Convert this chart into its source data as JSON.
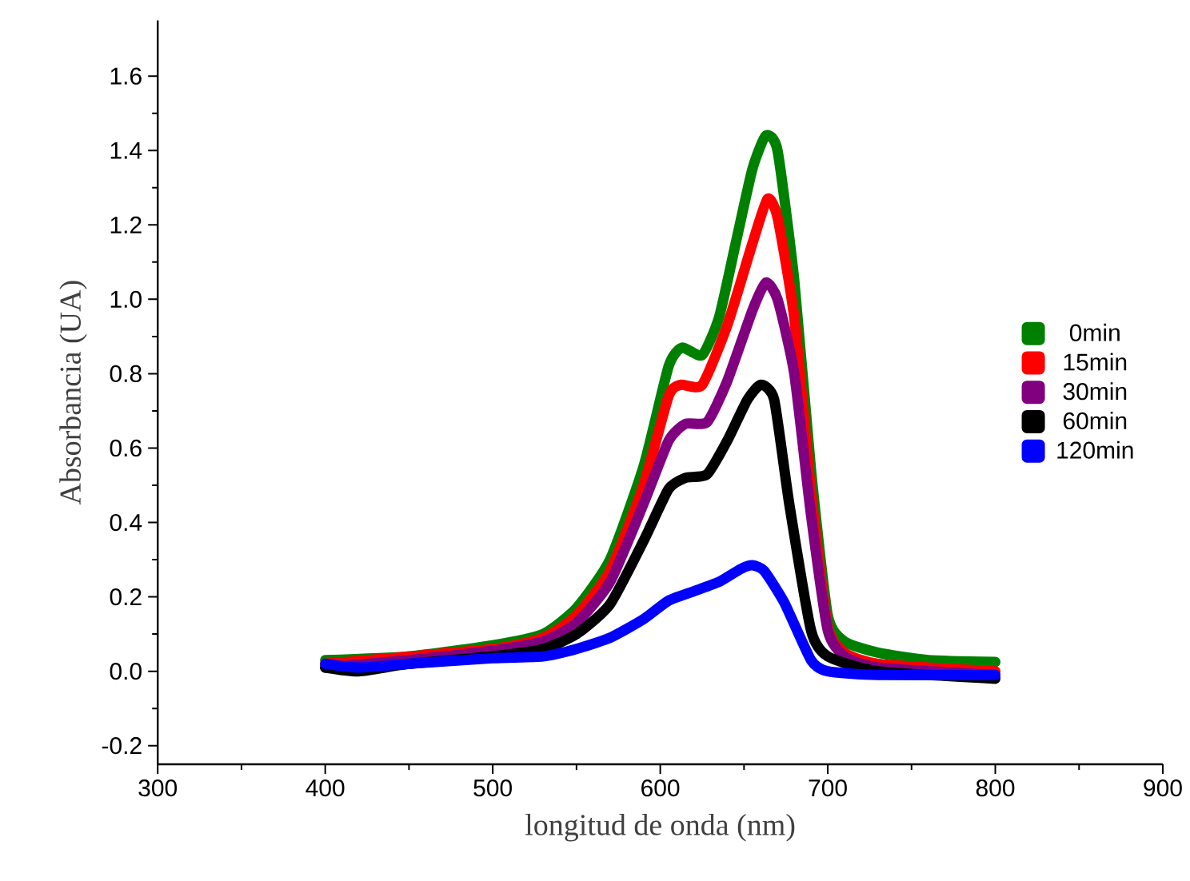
{
  "chart_data": {
    "type": "line",
    "xlabel": "longitud de onda (nm)",
    "ylabel": "Absorbancia (UA)",
    "xlim": [
      300,
      900
    ],
    "xticks": [
      300,
      400,
      500,
      600,
      700,
      800,
      900
    ],
    "ylim": [
      -0.25,
      1.75
    ],
    "yticks": [
      -0.2,
      {
        "value": 0,
        "label": "0.0"
      },
      0.2,
      0.4,
      0.6,
      0.8,
      {
        "value": 1,
        "label": "1.0"
      },
      1.2,
      1.4,
      1.6
    ],
    "legend": "right",
    "series": [
      {
        "name": "0min",
        "color": "#008000",
        "x": [
          400,
          420,
          450,
          500,
          530,
          550,
          570,
          590,
          605,
          613,
          625,
          635,
          645,
          655,
          663,
          670,
          680,
          690,
          700,
          710,
          730,
          760,
          800
        ],
        "values": [
          0.03,
          null,
          0.04,
          0.07,
          0.1,
          0.17,
          0.3,
          0.55,
          0.82,
          0.87,
          0.85,
          0.95,
          1.15,
          1.35,
          1.44,
          1.4,
          1.05,
          0.54,
          0.15,
          0.08,
          0.05,
          0.03,
          0.025
        ]
      },
      {
        "name": "15min",
        "color": "#ff0000",
        "x": [
          400,
          420,
          450,
          500,
          530,
          550,
          570,
          590,
          605,
          612,
          625,
          640,
          655,
          664,
          670,
          680,
          690,
          700,
          710,
          730,
          800
        ],
        "values": [
          0.02,
          null,
          null,
          0.06,
          0.09,
          0.15,
          0.27,
          0.5,
          0.74,
          0.77,
          0.77,
          0.93,
          1.15,
          1.27,
          1.22,
          0.95,
          0.48,
          0.12,
          0.05,
          0.02,
          0.0
        ]
      },
      {
        "name": "30min",
        "color": "#800080",
        "x": [
          400,
          420,
          450,
          500,
          530,
          550,
          570,
          590,
          605,
          615,
          628,
          640,
          655,
          663,
          670,
          680,
          690,
          700,
          710,
          730,
          800
        ],
        "values": [
          0.01,
          null,
          0.03,
          0.055,
          0.08,
          0.13,
          0.24,
          0.45,
          0.62,
          0.665,
          0.67,
          0.78,
          0.97,
          1.045,
          1.0,
          0.8,
          0.42,
          0.11,
          0.04,
          0.01,
          -0.01
        ]
      },
      {
        "name": "60min",
        "color": "#000000",
        "x": [
          400,
          420,
          450,
          500,
          530,
          550,
          570,
          590,
          605,
          615,
          628,
          640,
          652,
          660,
          668,
          677,
          690,
          700,
          730,
          800
        ],
        "values": [
          0.01,
          0.0,
          0.02,
          0.04,
          0.06,
          0.1,
          0.18,
          0.35,
          0.49,
          0.52,
          0.53,
          0.62,
          0.73,
          0.77,
          0.73,
          0.45,
          0.11,
          0.04,
          0.0,
          -0.02
        ]
      },
      {
        "name": "120min",
        "color": "#0000ff",
        "x": [
          400,
          420,
          450,
          500,
          530,
          550,
          570,
          590,
          605,
          620,
          635,
          648,
          655,
          662,
          674,
          690,
          700,
          730,
          800
        ],
        "values": [
          0.02,
          0.01,
          0.02,
          0.035,
          0.04,
          0.06,
          0.09,
          0.14,
          0.19,
          0.215,
          0.24,
          0.275,
          0.285,
          0.27,
          0.185,
          0.03,
          0.0,
          -0.01,
          -0.01
        ]
      }
    ]
  }
}
